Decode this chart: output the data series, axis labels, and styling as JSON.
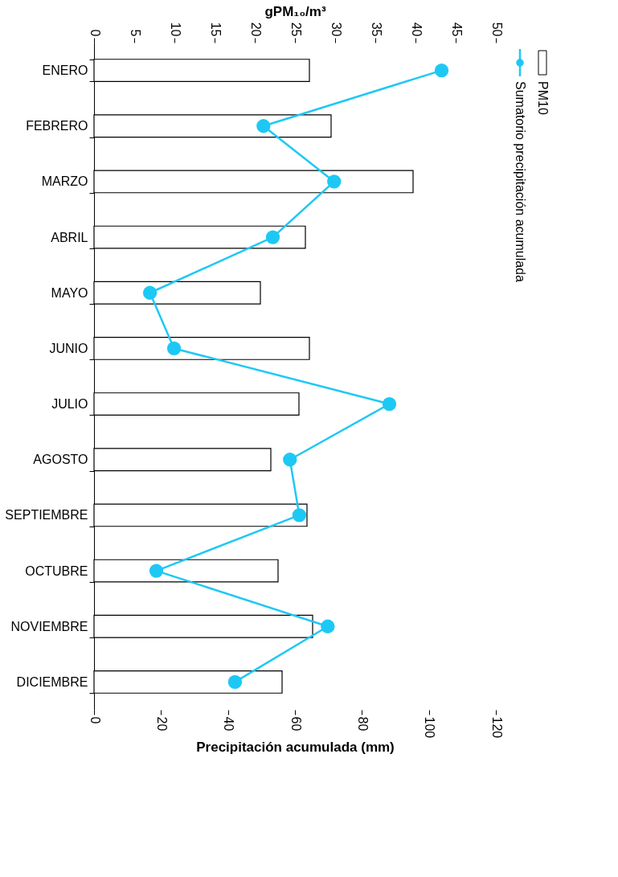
{
  "chart_data": {
    "type": "bar",
    "orientation": "horizontal",
    "categories": [
      "ENERO",
      "FEBRERO",
      "MARZO",
      "ABRIL",
      "MAYO",
      "JUNIO",
      "JULIO",
      "AGOSTO",
      "SEPTIEMBRE",
      "OCTUBRE",
      "NOVIEMBRE",
      "DICIEMBRE"
    ],
    "series": [
      {
        "name": "PM10",
        "axis": "x2",
        "color": "#ffffff",
        "values": [
          26.8,
          29.5,
          39.7,
          26.3,
          20.7,
          26.8,
          25.5,
          22.0,
          26.5,
          22.9,
          27.2,
          23.4
        ]
      },
      {
        "name": "Sumatorio precipitación acumulada",
        "type": "line",
        "color": "#1ec8f5",
        "values": [
          103.8,
          50.6,
          71.7,
          53.4,
          16.7,
          23.9,
          88.2,
          58.5,
          61.3,
          18.6,
          69.8,
          42.1
        ]
      }
    ],
    "xlabel": "Precipitación acumulada (mm)",
    "xlim": [
      0,
      120
    ],
    "xticks": [
      0,
      20,
      40,
      60,
      80,
      100,
      120
    ],
    "x2label": "gPM₁₀/m³",
    "x2lim": [
      0,
      50
    ],
    "x2ticks": [
      0,
      5,
      10,
      15,
      20,
      25,
      30,
      35,
      40,
      45,
      50
    ],
    "marker": "circle",
    "grid": false,
    "legend": "right"
  }
}
